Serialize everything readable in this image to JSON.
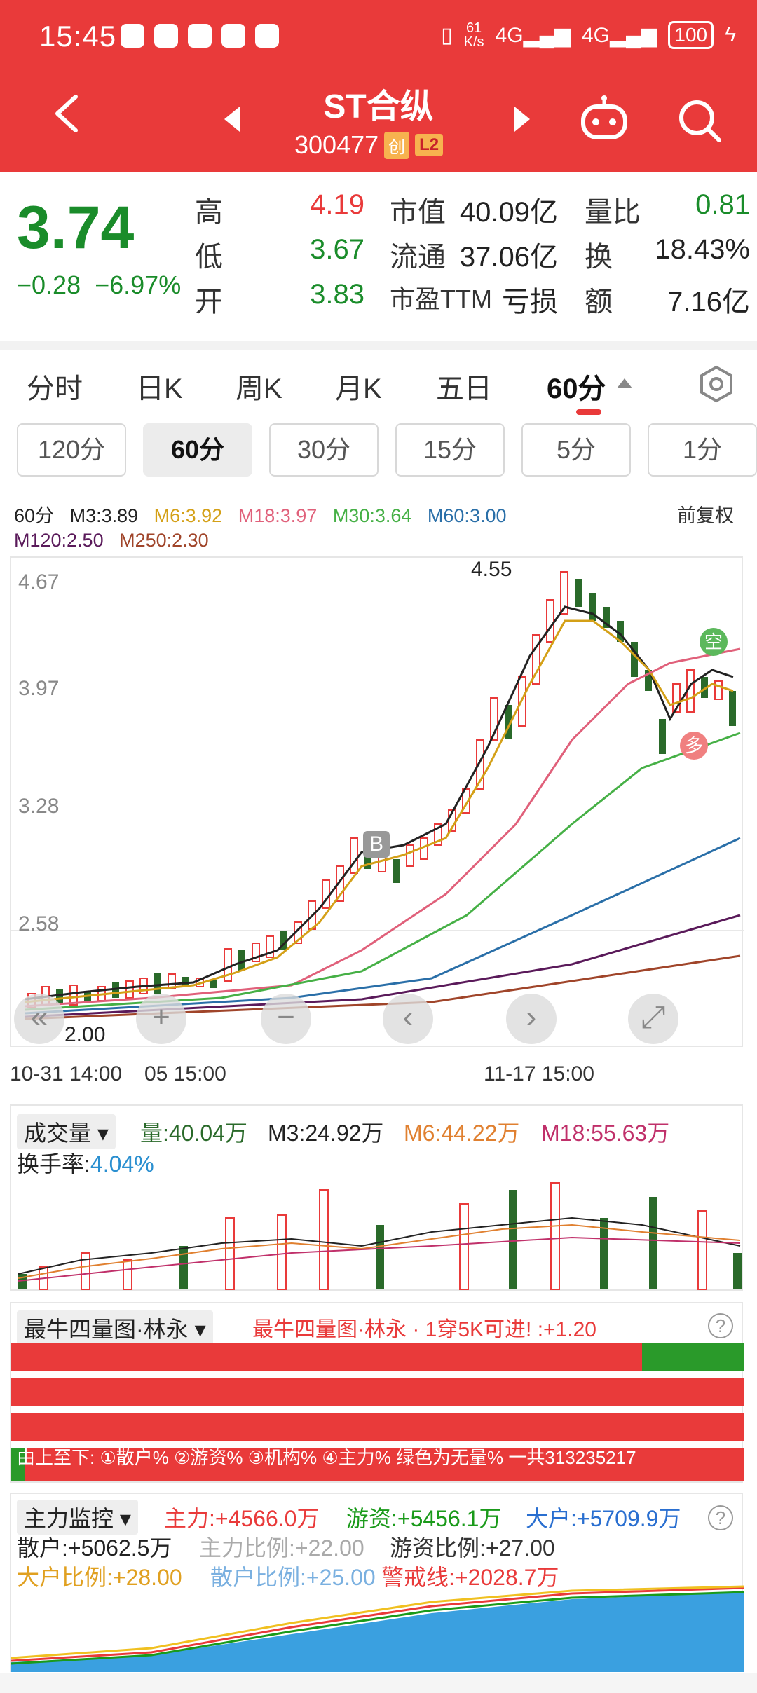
{
  "status": {
    "time": "15:45",
    "speed_value": "61",
    "speed_unit": "K/s",
    "net1": "4G",
    "net2": "4G",
    "battery": "100"
  },
  "header": {
    "stock_name": "ST合纵",
    "stock_code": "300477",
    "tag_market": "创",
    "tag_level": "L2"
  },
  "quote": {
    "price": "3.74",
    "change_abs": "−0.28",
    "change_pct": "−6.97%",
    "rows": [
      {
        "l1": "高",
        "v1": "4.19",
        "l2": "市值",
        "v2": "40.09亿",
        "l3": "量比",
        "v3": "0.81"
      },
      {
        "l1": "低",
        "v1": "3.67",
        "l2": "流通",
        "v2": "37.06亿",
        "l3": "换",
        "v3": "18.43%"
      },
      {
        "l1": "开",
        "v1": "3.83",
        "l2": "市盈TTM",
        "v2": "亏损",
        "l3": "额",
        "v3": "7.16亿"
      }
    ]
  },
  "tabs": [
    "分时",
    "日K",
    "周K",
    "月K",
    "五日",
    "60分"
  ],
  "subtabs": [
    "120分",
    "60分",
    "30分",
    "15分",
    "5分",
    "1分"
  ],
  "ma": {
    "period": "60分",
    "m3": "M3:3.89",
    "m6": "M6:3.92",
    "m18": "M18:3.97",
    "m30": "M30:3.64",
    "m60": "M60:3.00",
    "adjust": "前复权",
    "m120": "M120:2.50",
    "m250": "M250:2.30"
  },
  "main_axis": {
    "y_labels": [
      "4.67",
      "3.97",
      "3.28",
      "2.58"
    ],
    "high_marker": "4.55",
    "low_marker": "2.00",
    "time_labels": [
      "10-31 14:00",
      "05 15:00",
      "11-17 15:00"
    ],
    "signal_b": "B",
    "signal_kong": "空",
    "signal_duo": "多"
  },
  "volume_panel": {
    "title": "成交量",
    "vol": "量:40.04万",
    "m3": "M3:24.92万",
    "m6": "M6:44.22万",
    "m18": "M18:55.63万",
    "turnover_label": "换手率:",
    "turnover_value": "4.04%"
  },
  "bull_panel": {
    "title": "最牛四量图·林永",
    "desc": "最牛四量图·林永 · 1穿5K可进! :+1.20",
    "note": "由上至下: ①散户% ②游资% ③机构% ④主力% 绿色为无量% 一共313235217"
  },
  "main_force_panel": {
    "title": "主力监控",
    "zhuli": "主力:+4566.0万",
    "youzi": "游资:+5456.1万",
    "dahu": "大户:+5709.9万",
    "sanhu": "散户:+5062.5万",
    "zhuli_ratio": "主力比例:+22.00",
    "youzi_ratio": "游资比例:+27.00",
    "dahu_ratio": "大户比例:+28.00",
    "sanhu_ratio": "散户比例:+25.00",
    "warn": "警戒线:+2028.7万"
  }
}
